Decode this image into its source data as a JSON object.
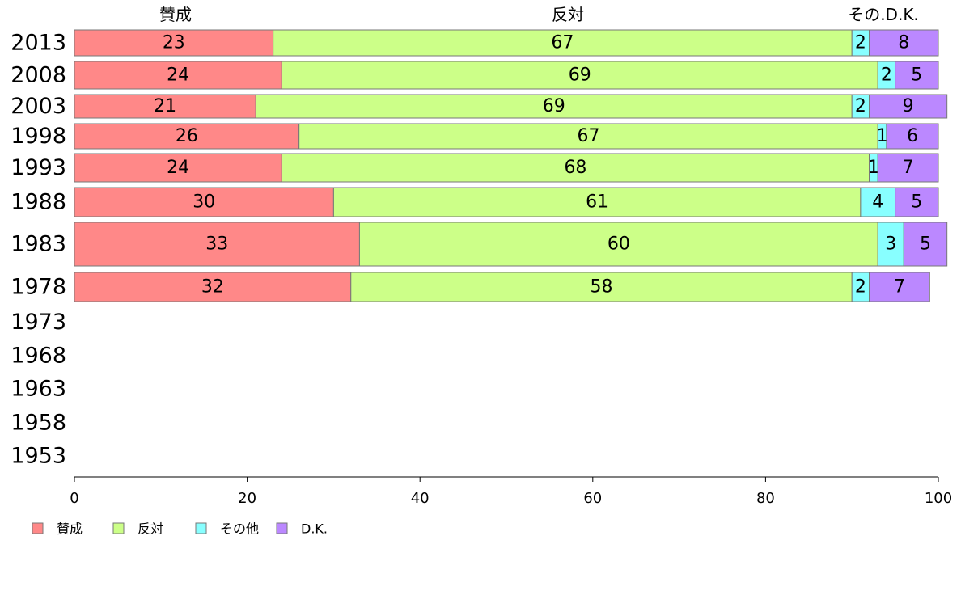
{
  "chart_data": {
    "type": "bar",
    "orientation": "horizontal",
    "stacked": true,
    "column_headers": [
      "賛成",
      "反対",
      "その.D.K."
    ],
    "categories": [
      "2013",
      "2008",
      "2003",
      "1998",
      "1993",
      "1988",
      "1983",
      "1978",
      "1973",
      "1968",
      "1963",
      "1958",
      "1953"
    ],
    "series": [
      {
        "name": "賛成",
        "color": "#ff8888",
        "values": [
          23,
          24,
          21,
          26,
          24,
          30,
          33,
          32,
          null,
          null,
          null,
          null,
          null
        ]
      },
      {
        "name": "反対",
        "color": "#ccff88",
        "values": [
          67,
          69,
          69,
          67,
          68,
          61,
          60,
          58,
          null,
          null,
          null,
          null,
          null
        ]
      },
      {
        "name": "その他",
        "color": "#88ffff",
        "values": [
          2,
          2,
          2,
          1,
          1,
          4,
          3,
          2,
          null,
          null,
          null,
          null,
          null
        ]
      },
      {
        "name": "D.K.",
        "color": "#bb88ff",
        "values": [
          8,
          5,
          9,
          6,
          7,
          5,
          5,
          7,
          null,
          null,
          null,
          null,
          null
        ]
      }
    ],
    "xlim": [
      0,
      100
    ],
    "xticks": [
      "0",
      "20",
      "40",
      "60",
      "80",
      "100"
    ],
    "legend_position": "bottom-left",
    "grid": false
  }
}
